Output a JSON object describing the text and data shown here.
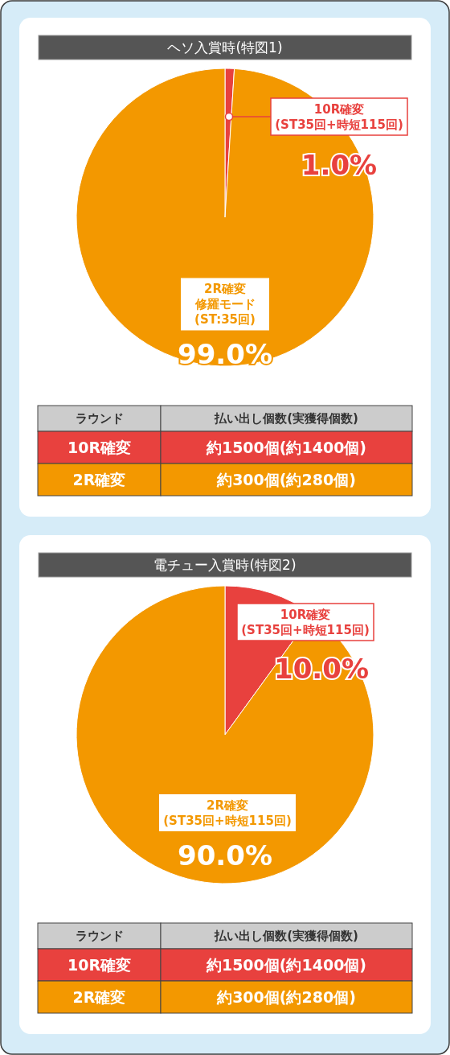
{
  "chart_data": [
    {
      "type": "pie",
      "title": "ヘソ入賞時(特図1)",
      "categories": [
        "10R確変(ST35回+時短115回)",
        "2R確変修羅モード(ST:35回)"
      ],
      "values": [
        1.0,
        99.0
      ],
      "value_labels": [
        "1.0%",
        "99.0%"
      ],
      "colors": [
        "#e8413e",
        "#f39800"
      ],
      "annotations": [
        "ラウンド",
        "払い出し個数(実獲得個数)",
        "10R確変",
        "約1500個(約1400個)",
        "2R確変",
        "約300個(約280個)"
      ]
    },
    {
      "type": "pie",
      "title": "電チュー入賞時(特図2)",
      "categories": [
        "10R確変(ST35回+時短115回)",
        "2R確変(ST35回+時短115回)"
      ],
      "values": [
        10.0,
        90.0
      ],
      "value_labels": [
        "10.0%",
        "90.0%"
      ],
      "colors": [
        "#e8413e",
        "#f39800"
      ],
      "annotations": [
        "ラウンド",
        "払い出し個数(実獲得個数)",
        "10R確変",
        "約1500個(約1400個)",
        "2R確変",
        "約300個(約280個)"
      ]
    }
  ]
}
